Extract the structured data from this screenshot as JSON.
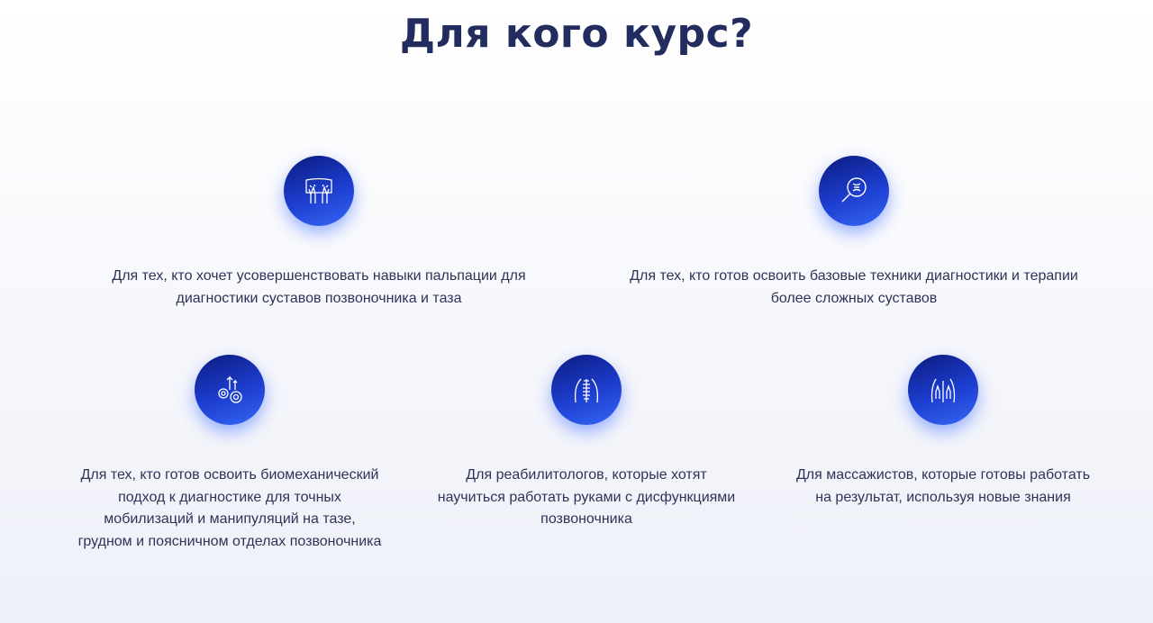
{
  "header": {
    "title": "Для кого курс?"
  },
  "colors": {
    "title": "#232c5e",
    "icon_gradient_start": "#0b1a7e",
    "icon_gradient_end": "#3567f5",
    "text": "#2d3457"
  },
  "items": [
    {
      "icon": "hands-palpation-icon",
      "text": "Для тех, кто хочет усовершенствовать навыки пальпации для диагностики суставов позвоночника и таза"
    },
    {
      "icon": "magnifier-joint-icon",
      "text": "Для тех, кто готов освоить базовые техники диагностики и терапии более сложных суставов"
    },
    {
      "icon": "gears-arrows-icon",
      "text": "Для тех, кто готов освоить биомеханический подход к диагностике для точных мобилизаций и манипуляций на тазе, грудном и поясничном отделах позвоночника"
    },
    {
      "icon": "spine-back-icon",
      "text": "Для реабилитологов, которые хотят научиться работать руками с дисфункциями позвоночника"
    },
    {
      "icon": "massage-hands-icon",
      "text": "Для массажистов, которые готовы работать на результат, используя новые знания"
    }
  ]
}
